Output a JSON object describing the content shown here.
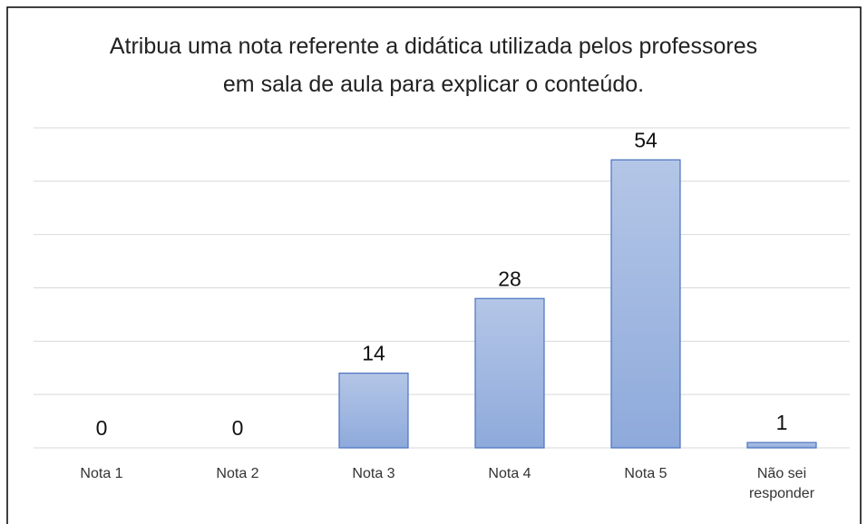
{
  "chart_data": {
    "type": "bar",
    "title": "Atribua uma nota referente a didática utilizada pelos professores em sala de aula para explicar o conteúdo.",
    "categories": [
      "Nota 1",
      "Nota 2",
      "Nota 3",
      "Nota 4",
      "Nota 5",
      "Não sei responder"
    ],
    "values": [
      0,
      0,
      14,
      28,
      54,
      1
    ],
    "color": "#9db5e0",
    "ylim": [
      0,
      60
    ],
    "yticks": [
      0,
      10,
      20,
      30,
      40,
      50,
      60
    ],
    "grid": true
  }
}
